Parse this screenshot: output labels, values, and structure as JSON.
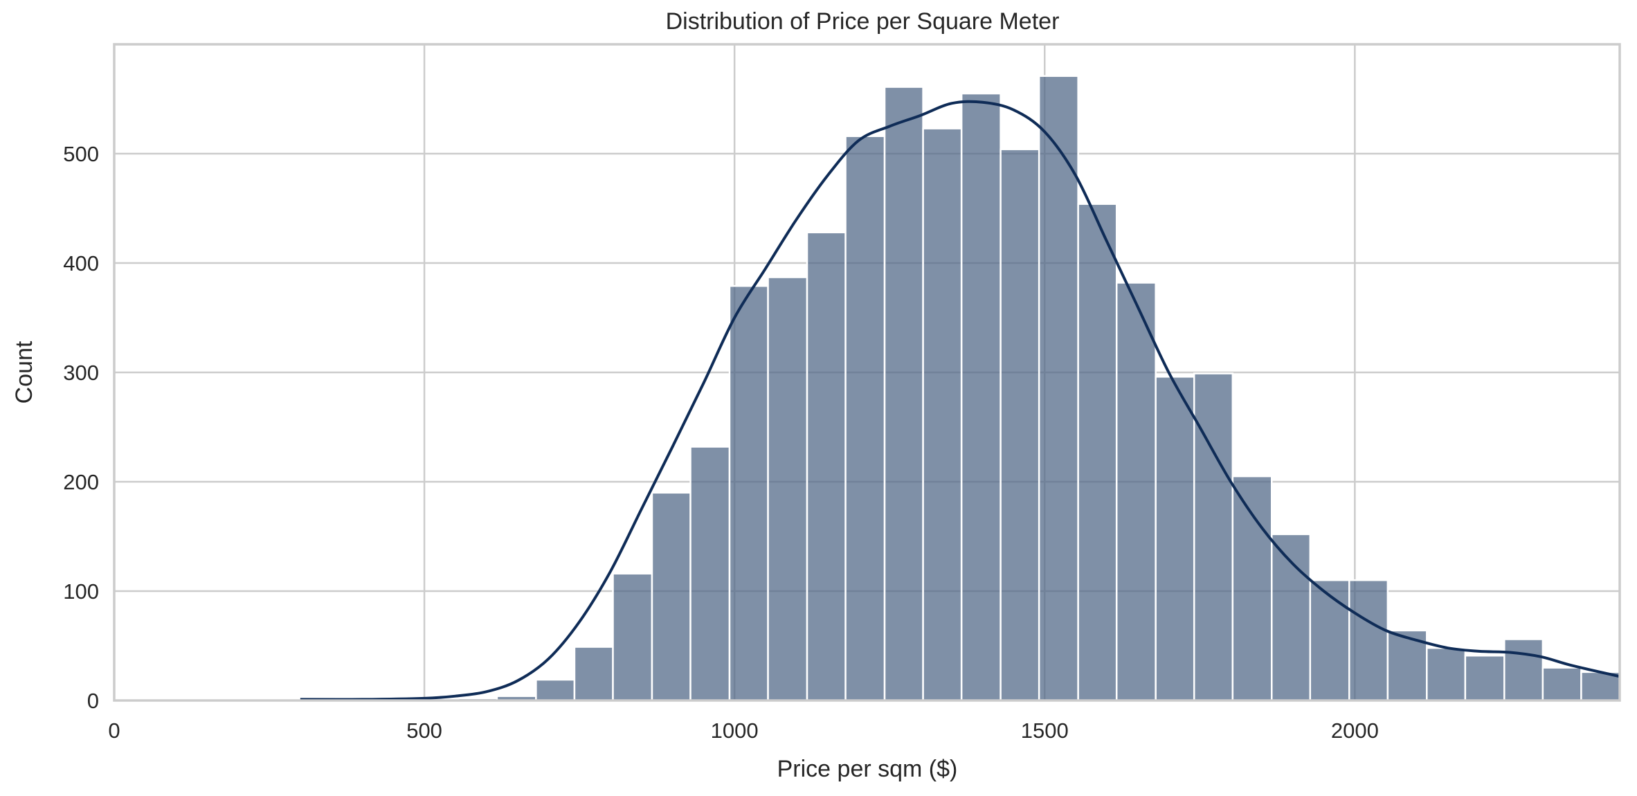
{
  "chart_data": {
    "type": "bar",
    "subtype": "histogram_with_kde",
    "title": "Distribution of Price per Square Meter",
    "xlabel": "Price per sqm ($)",
    "ylabel": "Count",
    "xlim": [
      0,
      2427
    ],
    "ylim": [
      0,
      600
    ],
    "xticks": [
      0,
      500,
      1000,
      1500,
      2000
    ],
    "yticks": [
      0,
      100,
      200,
      300,
      400,
      500
    ],
    "grid": true,
    "legend": null,
    "bin_width": 62.4,
    "bins": [
      {
        "x0": 305,
        "x1": 367,
        "count": 2
      },
      {
        "x0": 367,
        "x1": 430,
        "count": 1
      },
      {
        "x0": 430,
        "x1": 492,
        "count": 1
      },
      {
        "x0": 492,
        "x1": 555,
        "count": 1
      },
      {
        "x0": 555,
        "x1": 617,
        "count": 2
      },
      {
        "x0": 617,
        "x1": 680,
        "count": 4
      },
      {
        "x0": 680,
        "x1": 742,
        "count": 19
      },
      {
        "x0": 742,
        "x1": 804,
        "count": 49
      },
      {
        "x0": 804,
        "x1": 867,
        "count": 116
      },
      {
        "x0": 867,
        "x1": 929,
        "count": 190
      },
      {
        "x0": 929,
        "x1": 992,
        "count": 232
      },
      {
        "x0": 992,
        "x1": 1054,
        "count": 379
      },
      {
        "x0": 1054,
        "x1": 1117,
        "count": 387
      },
      {
        "x0": 1117,
        "x1": 1179,
        "count": 428
      },
      {
        "x0": 1179,
        "x1": 1242,
        "count": 516
      },
      {
        "x0": 1242,
        "x1": 1304,
        "count": 561
      },
      {
        "x0": 1304,
        "x1": 1366,
        "count": 523
      },
      {
        "x0": 1366,
        "x1": 1429,
        "count": 555
      },
      {
        "x0": 1429,
        "x1": 1491,
        "count": 504
      },
      {
        "x0": 1491,
        "x1": 1554,
        "count": 571
      },
      {
        "x0": 1554,
        "x1": 1616,
        "count": 454
      },
      {
        "x0": 1616,
        "x1": 1679,
        "count": 382
      },
      {
        "x0": 1679,
        "x1": 1741,
        "count": 296
      },
      {
        "x0": 1741,
        "x1": 1803,
        "count": 299
      },
      {
        "x0": 1803,
        "x1": 1866,
        "count": 205
      },
      {
        "x0": 1866,
        "x1": 1928,
        "count": 152
      },
      {
        "x0": 1928,
        "x1": 1991,
        "count": 110
      },
      {
        "x0": 1991,
        "x1": 2053,
        "count": 110
      },
      {
        "x0": 2053,
        "x1": 2116,
        "count": 64
      },
      {
        "x0": 2116,
        "x1": 2178,
        "count": 48
      },
      {
        "x0": 2178,
        "x1": 2241,
        "count": 41
      },
      {
        "x0": 2241,
        "x1": 2303,
        "count": 56
      },
      {
        "x0": 2303,
        "x1": 2365,
        "count": 30
      },
      {
        "x0": 2365,
        "x1": 2427,
        "count": 26
      }
    ],
    "categories": [
      "305",
      "367",
      "430",
      "492",
      "555",
      "617",
      "680",
      "742",
      "804",
      "867",
      "929",
      "992",
      "1054",
      "1117",
      "1179",
      "1242",
      "1304",
      "1366",
      "1429",
      "1491",
      "1554",
      "1616",
      "1679",
      "1741",
      "1803",
      "1866",
      "1928",
      "1991",
      "2053",
      "2116",
      "2178",
      "2241",
      "2303",
      "2365"
    ],
    "values": [
      2,
      1,
      1,
      1,
      2,
      4,
      19,
      49,
      116,
      190,
      232,
      379,
      387,
      428,
      516,
      561,
      523,
      555,
      504,
      571,
      454,
      382,
      296,
      299,
      205,
      152,
      110,
      110,
      64,
      48,
      41,
      56,
      30,
      26
    ],
    "kde_curve": {
      "x": [
        300,
        400,
        500,
        550,
        600,
        650,
        700,
        750,
        800,
        850,
        900,
        950,
        1000,
        1050,
        1100,
        1150,
        1200,
        1250,
        1300,
        1350,
        1400,
        1450,
        1500,
        1550,
        1600,
        1650,
        1700,
        1750,
        1800,
        1850,
        1900,
        1950,
        2000,
        2050,
        2100,
        2150,
        2200,
        2250,
        2300,
        2350,
        2427
      ],
      "y": [
        1,
        1,
        2,
        4,
        8,
        18,
        38,
        72,
        118,
        175,
        232,
        290,
        350,
        395,
        440,
        480,
        512,
        525,
        535,
        546,
        547,
        540,
        520,
        480,
        420,
        360,
        300,
        250,
        200,
        158,
        125,
        100,
        80,
        64,
        55,
        48,
        45,
        44,
        40,
        32,
        22
      ]
    },
    "colors": {
      "bar_fill": "#4d6585",
      "kde_line": "#0f2c57",
      "grid": "#cccccc",
      "background": "#ffffff"
    }
  }
}
